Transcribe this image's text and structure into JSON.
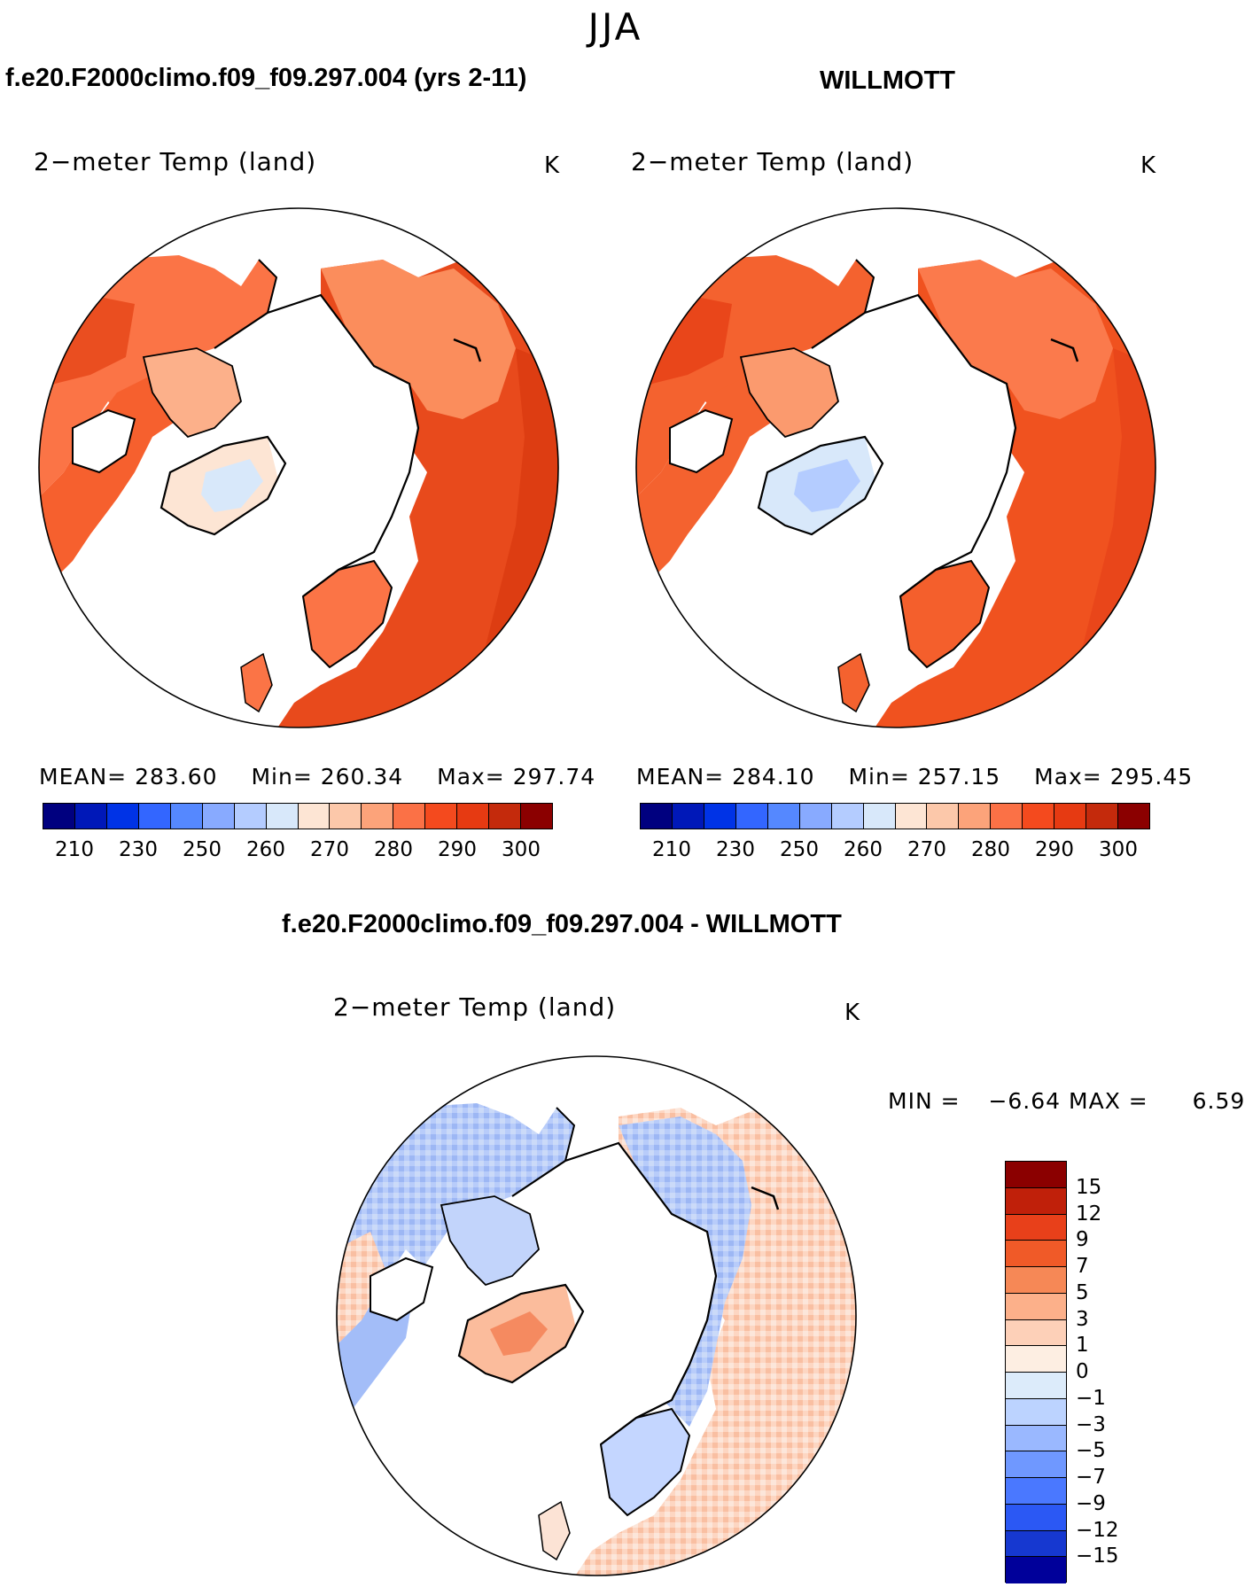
{
  "figure": {
    "season": "JJA",
    "left_title": "f.e20.F2000climo.f09_f09.297.004 (yrs 2-11)",
    "right_title": "WILLMOTT",
    "diff_title": "f.e20.F2000climo.f09_f09.297.004 - WILLMOTT"
  },
  "panels": [
    {
      "id": "model",
      "variable": "2−meter Temp (land)",
      "units": "K",
      "stats": {
        "mean_label": "MEAN=",
        "mean": "283.60",
        "min_label": "Min=",
        "min": "260.34",
        "max_label": "Max=",
        "max": "297.74"
      }
    },
    {
      "id": "obs",
      "variable": "2−meter Temp (land)",
      "units": "K",
      "stats": {
        "mean_label": "MEAN=",
        "mean": "284.10",
        "min_label": "Min=",
        "min": "257.15",
        "max_label": "Max=",
        "max": "295.45"
      }
    },
    {
      "id": "diff",
      "variable": "2−meter Temp (land)",
      "units": "K",
      "stats": {
        "min_label": "MIN =",
        "min": "−6.64",
        "max_label": "MAX =",
        "max": "6.59"
      }
    }
  ],
  "abs_colorbar": {
    "colors": [
      "#00007f",
      "#0018b8",
      "#0033e6",
      "#3366ff",
      "#5588ff",
      "#88aaff",
      "#b4ccff",
      "#d8e8fa",
      "#fde5d4",
      "#fcc8aa",
      "#fca37a",
      "#fb7146",
      "#f44a1e",
      "#e63a12",
      "#c42a0c",
      "#8b0000"
    ],
    "tick_labels": [
      "210",
      "230",
      "250",
      "260",
      "270",
      "280",
      "290",
      "300"
    ]
  },
  "diff_colorbar": {
    "colors": [
      "#8b0000",
      "#c0200a",
      "#e8401a",
      "#f05a28",
      "#f68856",
      "#fcb08a",
      "#fdd0b8",
      "#fdeee2",
      "#dcebfa",
      "#bcd3ff",
      "#9ab8ff",
      "#6f98ff",
      "#4a78ff",
      "#2b58f4",
      "#1638d0",
      "#00009a"
    ],
    "tick_labels": [
      "15",
      "12",
      "9",
      "7",
      "5",
      "3",
      "1",
      "0",
      "−1",
      "−3",
      "−5",
      "−7",
      "−9",
      "−12",
      "−15"
    ]
  }
}
